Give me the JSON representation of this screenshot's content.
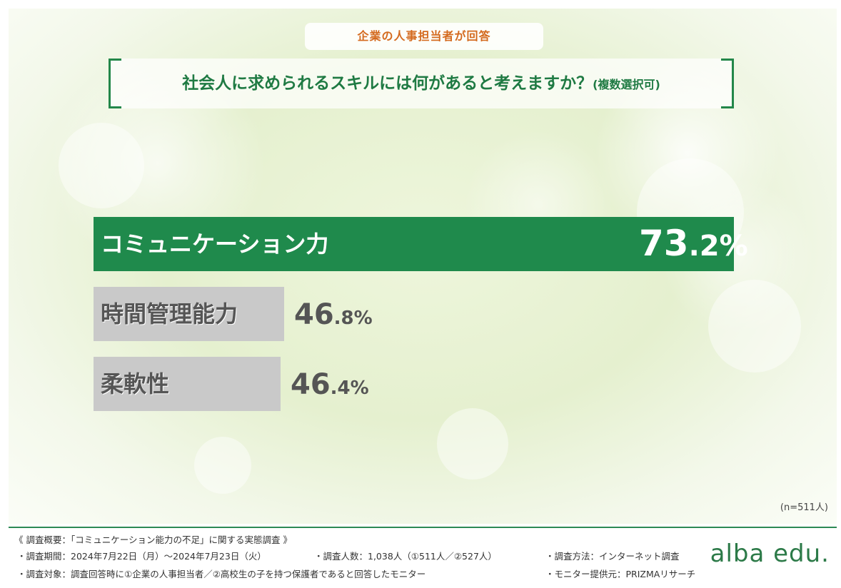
{
  "header": {
    "tag": "企業の人事担当者が回答",
    "question": "社会人に求められるスキルには何があると考えますか？",
    "question_note": "(複数選択可)"
  },
  "colors": {
    "accent_green": "#1f8a4c",
    "bar_gray": "#c9c9c9",
    "tag_orange": "#d46a1f"
  },
  "chart_data": {
    "type": "bar",
    "orientation": "horizontal",
    "categories": [
      "コミュニケーション力",
      "時間管理能力",
      "柔軟性"
    ],
    "values": [
      73.2,
      46.8,
      46.4
    ],
    "value_labels": [
      {
        "int": "73",
        "dec": ".2%"
      },
      {
        "int": "46",
        "dec": ".8%"
      },
      {
        "int": "46",
        "dec": ".4%"
      }
    ],
    "unit": "%",
    "xlim": [
      0,
      100
    ],
    "highlight_index": 0,
    "note": "(n=511人)"
  },
  "footer": {
    "overview": "《 調査概要：「コミュニケーション能力の不足」に関する実態調査 》",
    "period": "・調査期間：2024年7月22日（月）〜2024年7月23日（火）",
    "count": "・調査人数：1,038人（①511人／②527人）",
    "method": "・調査方法：インターネット調査",
    "target": "・調査対象：調査回答時に①企業の人事担当者／②高校生の子を持つ保護者であると回答したモニター",
    "provider": "・モニター提供元：PRIZMAリサーチ",
    "logo": "alba edu."
  }
}
